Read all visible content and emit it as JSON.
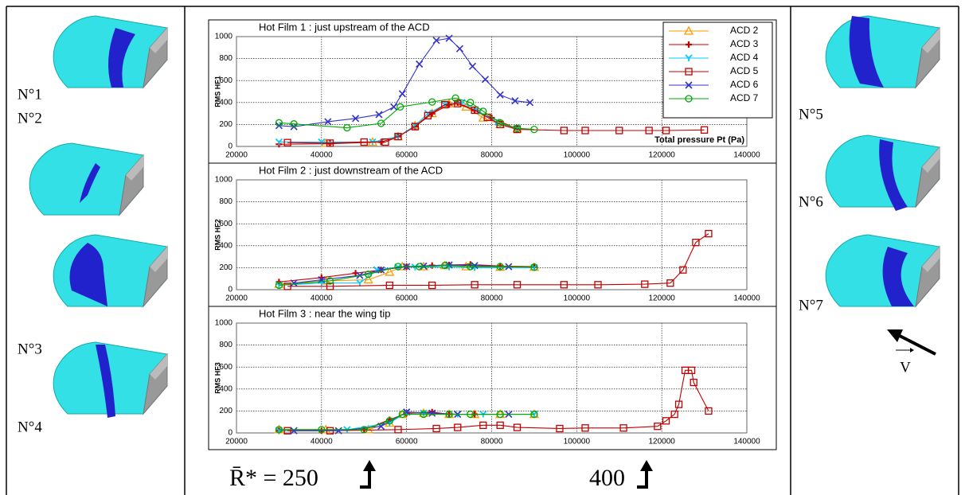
{
  "chart_data": [
    {
      "type": "line",
      "title": "Hot Film 1 : just upstream of the ACD",
      "ylabel": "RMS HF1",
      "xlabel": "Total pressure Pt (Pa)",
      "xlim": [
        20000,
        140000
      ],
      "ylim": [
        0,
        1000
      ],
      "xticks": [
        20000,
        40000,
        60000,
        80000,
        100000,
        120000,
        140000
      ],
      "yticks": [
        0,
        200,
        400,
        600,
        800,
        1000
      ],
      "grid": true,
      "legend": "upper right",
      "series": [
        {
          "name": "ACD 2",
          "color": "#ff9900",
          "marker": "triangle",
          "x": [
            41000,
            52000,
            58000,
            62000,
            66000,
            70000,
            74000,
            78000,
            82000,
            86000
          ],
          "values": [
            30,
            40,
            90,
            190,
            300,
            390,
            360,
            260,
            200,
            160
          ]
        },
        {
          "name": "ACD 3",
          "color": "#cc0000",
          "marker": "plus",
          "x": [
            30000,
            42000,
            54000,
            58000,
            62000,
            66000,
            70000,
            72000,
            76000,
            80000,
            86000
          ],
          "values": [
            20,
            25,
            40,
            90,
            180,
            300,
            380,
            400,
            330,
            260,
            160
          ]
        },
        {
          "name": "ACD 4",
          "color": "#00ccff",
          "marker": "tri-y",
          "x": [
            30000,
            40000,
            52000,
            58000,
            62000,
            65000,
            69000,
            73000,
            77000,
            81000,
            86000
          ],
          "values": [
            40,
            40,
            40,
            90,
            190,
            300,
            380,
            400,
            320,
            220,
            165
          ]
        },
        {
          "name": "ACD 5",
          "color": "#c00000",
          "marker": "square",
          "x": [
            32000,
            42000,
            50000,
            55000,
            58000,
            62000,
            65000,
            69000,
            72000,
            76000,
            79000,
            82000,
            86000,
            97000,
            102000,
            110000,
            117000,
            121000,
            130000
          ],
          "values": [
            35,
            30,
            40,
            40,
            90,
            180,
            280,
            380,
            390,
            330,
            265,
            200,
            155,
            145,
            145,
            145,
            145,
            145,
            150
          ]
        },
        {
          "name": "ACD 6",
          "color": "#3333cc",
          "marker": "cross",
          "x": [
            30000,
            33500,
            41500,
            48000,
            53500,
            57000,
            59000,
            63000,
            67000,
            70000,
            72500,
            75500,
            78500,
            82000,
            85500,
            89000
          ],
          "values": [
            190,
            180,
            225,
            255,
            290,
            360,
            480,
            750,
            965,
            985,
            890,
            730,
            610,
            470,
            415,
            400
          ]
        },
        {
          "name": "ACD 7",
          "color": "#00aa00",
          "marker": "circle",
          "x": [
            30000,
            33500,
            46000,
            54000,
            58500,
            66000,
            71500,
            75000,
            78000,
            82000,
            86000,
            90000
          ],
          "values": [
            215,
            205,
            170,
            210,
            360,
            405,
            440,
            400,
            320,
            215,
            165,
            155
          ]
        }
      ]
    },
    {
      "type": "line",
      "title": "Hot Film 2 : just downstream of the ACD",
      "ylabel": "RMS HF2",
      "xlim": [
        20000,
        140000
      ],
      "ylim": [
        0,
        1000
      ],
      "xticks": [
        20000,
        40000,
        60000,
        80000,
        100000,
        120000,
        140000
      ],
      "yticks": [
        0,
        200,
        400,
        600,
        800,
        1000
      ],
      "grid": true,
      "series": [
        {
          "color": "#ff9900",
          "marker": "triangle",
          "x": [
            30000,
            41000,
            51000,
            56000,
            59000,
            64000,
            69000,
            74000,
            82000,
            90000
          ],
          "values": [
            50,
            80,
            90,
            160,
            210,
            210,
            220,
            210,
            205,
            205
          ]
        },
        {
          "color": "#cc0000",
          "marker": "plus",
          "x": [
            30000,
            40000,
            48000,
            54000,
            60000,
            66000,
            70000,
            75000,
            82000,
            90000
          ],
          "values": [
            70,
            110,
            150,
            180,
            210,
            220,
            225,
            230,
            215,
            210
          ]
        },
        {
          "color": "#00ccff",
          "marker": "tri-y",
          "x": [
            30000,
            40000,
            49000,
            53000,
            58000,
            62000,
            70000,
            76000,
            90000
          ],
          "values": [
            40,
            60,
            60,
            180,
            205,
            205,
            205,
            200,
            200
          ]
        },
        {
          "color": "#c00000",
          "marker": "square",
          "x": [
            32000,
            42000,
            56000,
            66000,
            76000,
            86000,
            97000,
            105000,
            116000,
            122000,
            125000,
            128000,
            131000
          ],
          "values": [
            30,
            30,
            40,
            40,
            45,
            45,
            45,
            45,
            50,
            60,
            180,
            430,
            510
          ]
        },
        {
          "color": "#3333cc",
          "marker": "cross",
          "x": [
            33500,
            40000,
            49000,
            54000,
            60000,
            64000,
            70000,
            76000,
            84000
          ],
          "values": [
            60,
            90,
            130,
            180,
            210,
            215,
            225,
            220,
            210
          ]
        },
        {
          "color": "#00aa00",
          "marker": "circle",
          "x": [
            30000,
            42000,
            51000,
            58000,
            63000,
            69000,
            75000,
            82000,
            90000
          ],
          "values": [
            40,
            80,
            140,
            210,
            210,
            220,
            210,
            210,
            205
          ]
        }
      ]
    },
    {
      "type": "line",
      "title": "Hot Film 3 : near the wing tip",
      "ylabel": "RMS HF3",
      "xlim": [
        20000,
        140000
      ],
      "ylim": [
        0,
        1000
      ],
      "xticks": [
        20000,
        40000,
        60000,
        80000,
        100000,
        120000,
        140000
      ],
      "yticks": [
        0,
        200,
        400,
        600,
        800,
        1000
      ],
      "grid": true,
      "series": [
        {
          "color": "#ff9900",
          "marker": "triangle",
          "x": [
            30000,
            41000,
            51000,
            56000,
            59000,
            64000,
            70000,
            76000,
            82000,
            90000
          ],
          "values": [
            30,
            30,
            30,
            90,
            170,
            180,
            170,
            170,
            170,
            170
          ]
        },
        {
          "color": "#cc0000",
          "marker": "plus",
          "x": [
            30000,
            40000,
            50000,
            56000,
            60000,
            66000,
            70000,
            76000
          ],
          "values": [
            20,
            20,
            30,
            120,
            180,
            190,
            170,
            170
          ]
        },
        {
          "color": "#00ccff",
          "marker": "tri-y",
          "x": [
            30000,
            46000,
            56000,
            60000,
            64000,
            72000,
            78000,
            90000
          ],
          "values": [
            20,
            30,
            90,
            190,
            180,
            170,
            170,
            170
          ]
        },
        {
          "color": "#c00000",
          "marker": "square",
          "x": [
            32000,
            42000,
            58000,
            67000,
            72000,
            78000,
            82000,
            86000,
            96000,
            102000,
            111000,
            119000,
            121000,
            123000,
            124000,
            125500,
            127000,
            127500,
            131000
          ],
          "values": [
            20,
            20,
            30,
            40,
            50,
            70,
            70,
            50,
            40,
            45,
            45,
            60,
            110,
            170,
            260,
            570,
            570,
            460,
            200
          ]
        },
        {
          "color": "#3333cc",
          "marker": "cross",
          "x": [
            33500,
            44000,
            54000,
            60000,
            66000,
            72000,
            84000
          ],
          "values": [
            20,
            20,
            60,
            190,
            180,
            170,
            170
          ]
        },
        {
          "color": "#00aa00",
          "marker": "circle",
          "x": [
            30000,
            40000,
            50000,
            56000,
            59000,
            64000,
            70000,
            75000,
            82000,
            90000
          ],
          "values": [
            30,
            30,
            30,
            110,
            170,
            170,
            170,
            170,
            170,
            170
          ]
        }
      ]
    }
  ],
  "shape_labels": {
    "left": [
      "N°1",
      "N°2",
      "N°3",
      "N°4"
    ],
    "right": [
      "N°5",
      "N°6",
      "N°7"
    ]
  },
  "velocity_label": "V",
  "reynolds_labels": [
    "R̄* = 250",
    "400"
  ]
}
